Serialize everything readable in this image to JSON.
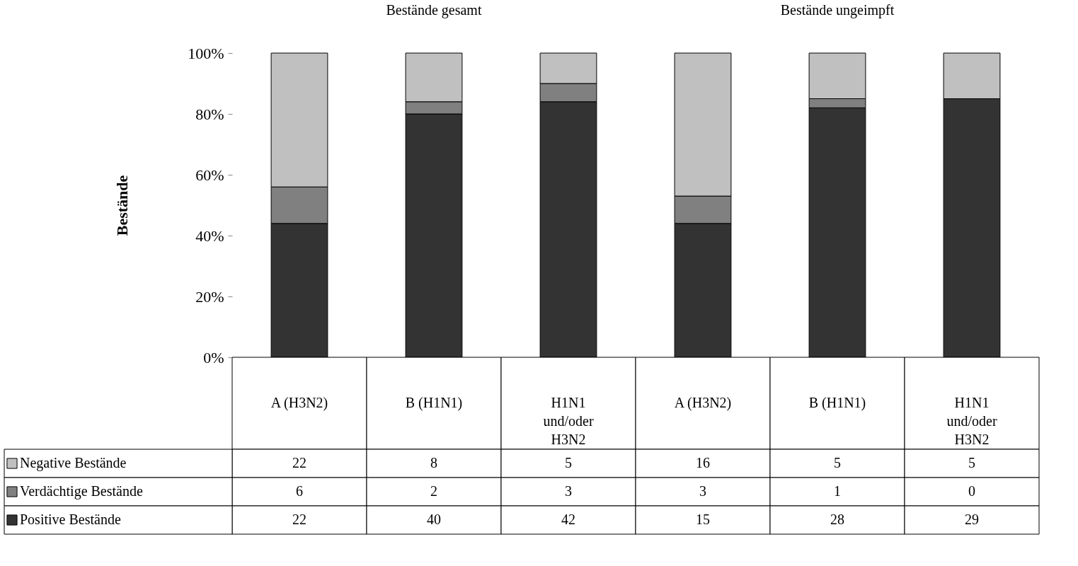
{
  "chart_data": {
    "type": "bar",
    "stacked": true,
    "ylabel": "Bestände",
    "annotations": [
      "Bestände gesamt",
      "Bestände ungeimpft",
      "22",
      "8",
      "5",
      "16",
      "5",
      "5",
      "6",
      "2",
      "3",
      "3",
      "1",
      "0",
      "22",
      "40",
      "42",
      "15",
      "28",
      "29"
    ],
    "categories": [
      "A (H3N2)",
      "B (H1N1)",
      "H1N1 und/oder H3N2",
      "A (H3N2)",
      "B (H1N1)",
      "H1N1 und/oder H3N2"
    ],
    "series": [
      {
        "name": "Positive Bestände",
        "color": "#333333",
        "values": [
          44,
          80,
          84,
          44,
          82,
          85
        ]
      },
      {
        "name": "Verdächtige Bestände",
        "color": "#808080",
        "values": [
          12,
          4,
          6,
          9,
          3,
          0
        ]
      },
      {
        "name": "Negative Bestände",
        "color": "#c0c0c0",
        "values": [
          44,
          16,
          10,
          47,
          15,
          15
        ]
      }
    ],
    "ylim": [
      0,
      100
    ],
    "yticks": [
      {
        "value": 0,
        "label": "0%"
      },
      {
        "value": 20,
        "label": "20%"
      },
      {
        "value": 40,
        "label": "40%"
      },
      {
        "value": 60,
        "label": "60%"
      },
      {
        "value": 80,
        "label": "80%"
      },
      {
        "value": 100,
        "label": "100%"
      }
    ],
    "grid": false,
    "legend": "bottom"
  }
}
